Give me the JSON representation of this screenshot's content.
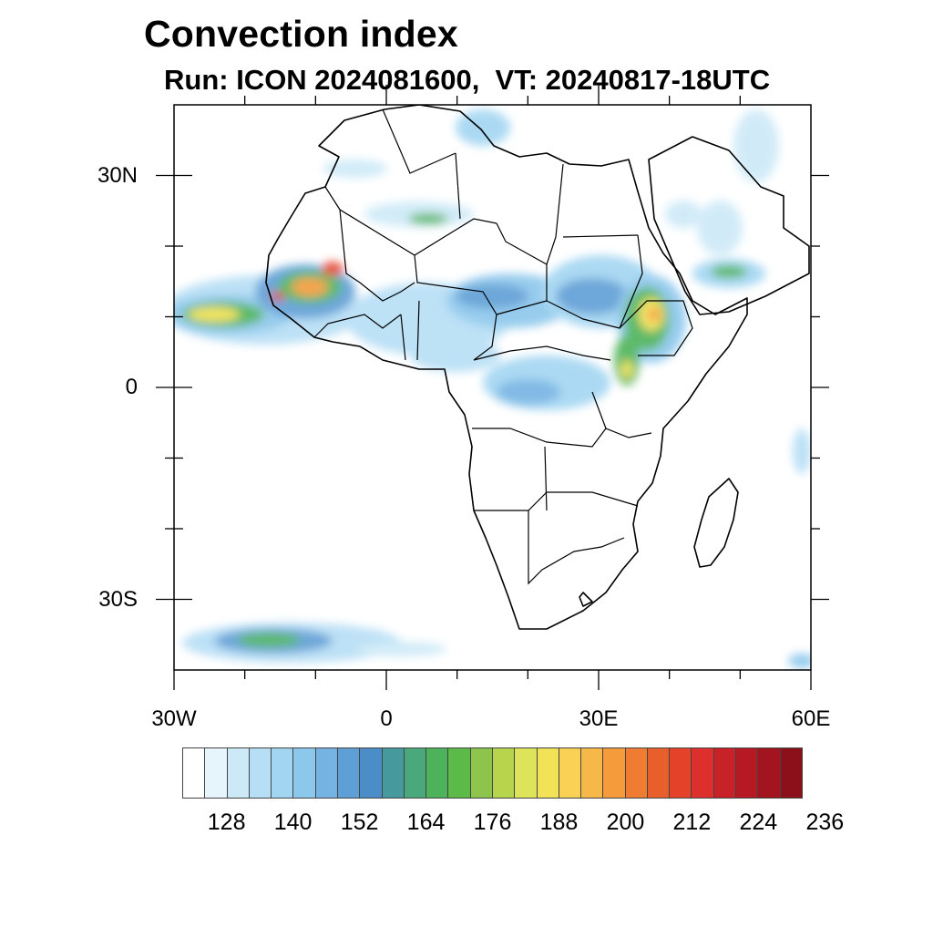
{
  "title": "Convection index",
  "subtitle": {
    "run": "Run: ICON 2024081600,",
    "vt": "  VT: 20240817-18UTC"
  },
  "map": {
    "region": "Africa",
    "lon_range": [
      -30,
      60
    ],
    "lat_range": [
      -40,
      40
    ],
    "lat_ticks": [
      {
        "value": 30,
        "label": "30N"
      },
      {
        "value": 0,
        "label": "0"
      },
      {
        "value": -30,
        "label": "30S"
      }
    ],
    "lon_ticks": [
      {
        "value": -30,
        "label": "30W"
      },
      {
        "value": 0,
        "label": "0"
      },
      {
        "value": 30,
        "label": "30E"
      },
      {
        "value": 60,
        "label": "60E"
      }
    ],
    "colors": {
      "coast": "#000000",
      "background": "#ffffff"
    }
  },
  "colorbar": {
    "colors": [
      "#ffffff",
      "#e6f4fc",
      "#cce9f7",
      "#b6def5",
      "#a2d5f2",
      "#8cc7ec",
      "#75b3e3",
      "#5e9fd6",
      "#4b8dc7",
      "#469a9e",
      "#4aa97c",
      "#4db35a",
      "#5cbb48",
      "#8dc54c",
      "#b6d54d",
      "#dde45a",
      "#f1e257",
      "#f9d154",
      "#f7b84a",
      "#f59b3b",
      "#f07c32",
      "#e95f2c",
      "#e54329",
      "#dd2f2b",
      "#c92128",
      "#b61924",
      "#a2141f",
      "#8c101a"
    ],
    "labels": [
      "128",
      "140",
      "152",
      "164",
      "176",
      "188",
      "200",
      "212",
      "224",
      "236"
    ]
  }
}
